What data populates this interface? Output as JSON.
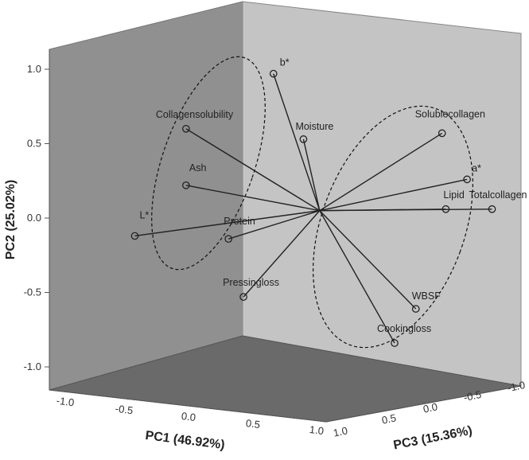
{
  "chart_data": {
    "type": "scatter",
    "subtype": "3d-biplot",
    "title": "",
    "axes": {
      "pc1": {
        "label": "PC1 (46.92%)",
        "ticks": [
          "-1.0",
          "-0.5",
          "0.0",
          "0.5",
          "1.0"
        ],
        "range": [
          -1.0,
          1.0
        ]
      },
      "pc2": {
        "label": "PC2 (25.02%)",
        "ticks": [
          "-1.0",
          "-0.5",
          "0.0",
          "0.5",
          "1.0"
        ],
        "range": [
          -1.0,
          1.0
        ]
      },
      "pc3": {
        "label": "PC3 (15.36%)",
        "ticks": [
          "1.0",
          "0.5",
          "0.0",
          "-0.5",
          "-1.0"
        ],
        "range": [
          1.0,
          -1.0
        ]
      }
    },
    "variables": [
      {
        "label": "b*",
        "pc1": 0.68,
        "pc2": 0.97
      },
      {
        "label": "Collagensolubility",
        "pc1": -0.02,
        "pc2": 0.6
      },
      {
        "label": "Moisture",
        "pc1": 0.92,
        "pc2": 0.53
      },
      {
        "label": "Ash",
        "pc1": -0.02,
        "pc2": 0.22
      },
      {
        "label": "L*",
        "pc1": -0.43,
        "pc2": -0.12
      },
      {
        "label": "Protein",
        "pc1": 0.32,
        "pc2": -0.14
      },
      {
        "label": "Pressingloss",
        "pc1": 0.44,
        "pc2": -0.53
      },
      {
        "label": "Solublecollagen",
        "pc1": 2.03,
        "pc2": 0.57
      },
      {
        "label": "a*",
        "pc1": 2.23,
        "pc2": 0.26
      },
      {
        "label": "Lipid",
        "pc1": 2.06,
        "pc2": 0.06
      },
      {
        "label": "Totalcollagen",
        "pc1": 2.43,
        "pc2": 0.06
      },
      {
        "label": "WBSF",
        "pc1": 1.82,
        "pc2": -0.61
      },
      {
        "label": "Cookingloss",
        "pc1": 1.65,
        "pc2": -0.84
      }
    ],
    "origin": {
      "pc1": 1.05,
      "pc2": 0.05
    },
    "groups": [
      "group-left",
      "group-right"
    ],
    "colors": {
      "back_wall": "#909090",
      "right_wall": "#c4c4c4",
      "floor": "#6a6a6a",
      "line": "#222222"
    },
    "grid": false,
    "legend": "none"
  }
}
